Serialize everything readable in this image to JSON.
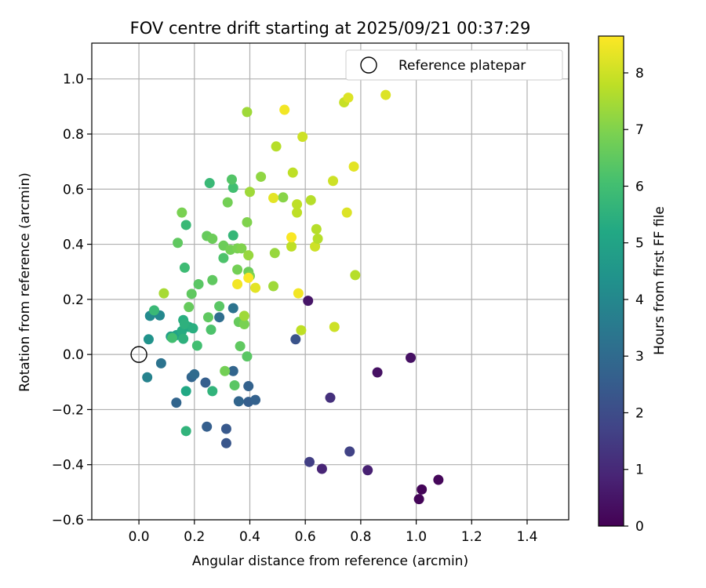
{
  "chart_data": {
    "type": "scatter",
    "title": "FOV centre drift starting at 2025/09/21 00:37:29",
    "xlabel": "Angular distance from reference (arcmin)",
    "ylabel": "Rotation from reference (arcmin)",
    "xlim": [
      -0.17,
      1.55
    ],
    "ylim": [
      -0.6,
      1.13
    ],
    "xticks": [
      0.0,
      0.2,
      0.4,
      0.6,
      0.8,
      1.0,
      1.2,
      1.4
    ],
    "yticks": [
      -0.6,
      -0.4,
      -0.2,
      0.0,
      0.2,
      0.4,
      0.6,
      0.8,
      1.0
    ],
    "grid": true,
    "legend": {
      "position": "top-right",
      "entries": [
        "Reference platepar"
      ]
    },
    "reference_point": {
      "x": 0.0,
      "y": 0.0
    },
    "colorbar": {
      "label": "Hours from first FF file",
      "range": [
        0,
        8.65
      ],
      "ticks": [
        0,
        1,
        2,
        3,
        4,
        5,
        6,
        7,
        8
      ],
      "colormap": "viridis"
    },
    "points": [
      {
        "x": 1.01,
        "y": -0.525,
        "c": 0.1
      },
      {
        "x": 1.02,
        "y": -0.49,
        "c": 0.1
      },
      {
        "x": 1.08,
        "y": -0.455,
        "c": 0.15
      },
      {
        "x": 0.98,
        "y": -0.012,
        "c": 0.4
      },
      {
        "x": 0.86,
        "y": -0.065,
        "c": 0.4
      },
      {
        "x": 0.61,
        "y": 0.195,
        "c": 0.5
      },
      {
        "x": 0.825,
        "y": -0.42,
        "c": 0.8
      },
      {
        "x": 0.66,
        "y": -0.415,
        "c": 0.9
      },
      {
        "x": 0.69,
        "y": -0.157,
        "c": 1.2
      },
      {
        "x": 0.615,
        "y": -0.39,
        "c": 1.6
      },
      {
        "x": 0.76,
        "y": -0.352,
        "c": 1.7
      },
      {
        "x": 0.565,
        "y": 0.055,
        "c": 2.2
      },
      {
        "x": 0.315,
        "y": -0.322,
        "c": 2.3
      },
      {
        "x": 0.315,
        "y": -0.27,
        "c": 2.4
      },
      {
        "x": 0.245,
        "y": -0.262,
        "c": 2.6
      },
      {
        "x": 0.395,
        "y": -0.172,
        "c": 2.6
      },
      {
        "x": 0.42,
        "y": -0.165,
        "c": 2.7
      },
      {
        "x": 0.36,
        "y": -0.17,
        "c": 2.8
      },
      {
        "x": 0.395,
        "y": -0.115,
        "c": 2.7
      },
      {
        "x": 0.34,
        "y": -0.06,
        "c": 2.8
      },
      {
        "x": 0.24,
        "y": -0.102,
        "c": 2.6
      },
      {
        "x": 0.135,
        "y": -0.175,
        "c": 2.8
      },
      {
        "x": 0.19,
        "y": -0.082,
        "c": 2.8
      },
      {
        "x": 0.2,
        "y": -0.072,
        "c": 3.0
      },
      {
        "x": 0.08,
        "y": -0.032,
        "c": 3.3
      },
      {
        "x": 0.29,
        "y": 0.135,
        "c": 3.1
      },
      {
        "x": 0.34,
        "y": 0.168,
        "c": 3.3
      },
      {
        "x": 0.03,
        "y": -0.083,
        "c": 3.8
      },
      {
        "x": 0.035,
        "y": 0.055,
        "c": 4.4
      },
      {
        "x": 0.04,
        "y": 0.14,
        "c": 4.1
      },
      {
        "x": 0.075,
        "y": 0.142,
        "c": 4.0
      },
      {
        "x": 0.115,
        "y": 0.065,
        "c": 4.8
      },
      {
        "x": 0.135,
        "y": 0.07,
        "c": 5.0
      },
      {
        "x": 0.155,
        "y": 0.085,
        "c": 5.3
      },
      {
        "x": 0.16,
        "y": 0.125,
        "c": 5.4
      },
      {
        "x": 0.18,
        "y": 0.1,
        "c": 5.2
      },
      {
        "x": 0.165,
        "y": 0.11,
        "c": 5.5
      },
      {
        "x": 0.16,
        "y": 0.057,
        "c": 5.5
      },
      {
        "x": 0.195,
        "y": 0.095,
        "c": 5.4
      },
      {
        "x": 0.17,
        "y": -0.133,
        "c": 5.2
      },
      {
        "x": 0.17,
        "y": -0.278,
        "c": 5.6
      },
      {
        "x": 0.265,
        "y": -0.133,
        "c": 5.6
      },
      {
        "x": 0.055,
        "y": 0.16,
        "c": 5.8
      },
      {
        "x": 0.12,
        "y": 0.06,
        "c": 6.0
      },
      {
        "x": 0.21,
        "y": 0.032,
        "c": 6.0
      },
      {
        "x": 0.165,
        "y": 0.315,
        "c": 5.9
      },
      {
        "x": 0.17,
        "y": 0.47,
        "c": 5.8
      },
      {
        "x": 0.255,
        "y": 0.622,
        "c": 5.8
      },
      {
        "x": 0.34,
        "y": 0.432,
        "c": 5.7
      },
      {
        "x": 0.34,
        "y": 0.605,
        "c": 6.0
      },
      {
        "x": 0.335,
        "y": 0.635,
        "c": 6.3
      },
      {
        "x": 0.14,
        "y": 0.405,
        "c": 6.5
      },
      {
        "x": 0.155,
        "y": 0.515,
        "c": 6.9
      },
      {
        "x": 0.18,
        "y": 0.172,
        "c": 6.6
      },
      {
        "x": 0.19,
        "y": 0.22,
        "c": 6.5
      },
      {
        "x": 0.215,
        "y": 0.255,
        "c": 6.4
      },
      {
        "x": 0.25,
        "y": 0.135,
        "c": 6.5
      },
      {
        "x": 0.26,
        "y": 0.09,
        "c": 6.2
      },
      {
        "x": 0.265,
        "y": 0.27,
        "c": 6.5
      },
      {
        "x": 0.245,
        "y": 0.43,
        "c": 6.6
      },
      {
        "x": 0.265,
        "y": 0.42,
        "c": 6.7
      },
      {
        "x": 0.29,
        "y": 0.175,
        "c": 6.4
      },
      {
        "x": 0.305,
        "y": 0.395,
        "c": 6.7
      },
      {
        "x": 0.305,
        "y": 0.35,
        "c": 6.2
      },
      {
        "x": 0.31,
        "y": -0.06,
        "c": 6.8
      },
      {
        "x": 0.32,
        "y": 0.552,
        "c": 6.8
      },
      {
        "x": 0.33,
        "y": 0.38,
        "c": 6.8
      },
      {
        "x": 0.345,
        "y": -0.112,
        "c": 6.4
      },
      {
        "x": 0.355,
        "y": 0.385,
        "c": 6.9
      },
      {
        "x": 0.355,
        "y": 0.308,
        "c": 6.8
      },
      {
        "x": 0.36,
        "y": 0.118,
        "c": 6.6
      },
      {
        "x": 0.365,
        "y": 0.03,
        "c": 6.5
      },
      {
        "x": 0.37,
        "y": 0.385,
        "c": 7.0
      },
      {
        "x": 0.38,
        "y": 0.11,
        "c": 6.9
      },
      {
        "x": 0.39,
        "y": 0.48,
        "c": 7.0
      },
      {
        "x": 0.39,
        "y": -0.007,
        "c": 6.4
      },
      {
        "x": 0.395,
        "y": 0.3,
        "c": 6.7
      },
      {
        "x": 0.395,
        "y": 0.36,
        "c": 7.3
      },
      {
        "x": 0.4,
        "y": 0.285,
        "c": 6.9
      },
      {
        "x": 0.4,
        "y": 0.59,
        "c": 7.4
      },
      {
        "x": 0.38,
        "y": 0.14,
        "c": 7.4
      },
      {
        "x": 0.39,
        "y": 0.88,
        "c": 7.4
      },
      {
        "x": 0.44,
        "y": 0.645,
        "c": 7.2
      },
      {
        "x": 0.485,
        "y": 0.248,
        "c": 7.4
      },
      {
        "x": 0.49,
        "y": 0.368,
        "c": 7.3
      },
      {
        "x": 0.52,
        "y": 0.57,
        "c": 7.1
      },
      {
        "x": 0.09,
        "y": 0.222,
        "c": 7.5
      },
      {
        "x": 0.495,
        "y": 0.755,
        "c": 7.7
      },
      {
        "x": 0.55,
        "y": 0.392,
        "c": 7.8
      },
      {
        "x": 0.555,
        "y": 0.66,
        "c": 7.8
      },
      {
        "x": 0.57,
        "y": 0.545,
        "c": 7.8
      },
      {
        "x": 0.57,
        "y": 0.515,
        "c": 7.8
      },
      {
        "x": 0.585,
        "y": 0.088,
        "c": 7.8
      },
      {
        "x": 0.59,
        "y": 0.79,
        "c": 8.0
      },
      {
        "x": 0.62,
        "y": 0.56,
        "c": 7.7
      },
      {
        "x": 0.635,
        "y": 0.392,
        "c": 8.0
      },
      {
        "x": 0.64,
        "y": 0.455,
        "c": 7.7
      },
      {
        "x": 0.645,
        "y": 0.42,
        "c": 7.7
      },
      {
        "x": 0.7,
        "y": 0.63,
        "c": 8.0
      },
      {
        "x": 0.705,
        "y": 0.1,
        "c": 8.0
      },
      {
        "x": 0.74,
        "y": 0.915,
        "c": 7.9
      },
      {
        "x": 0.75,
        "y": 0.515,
        "c": 8.2
      },
      {
        "x": 0.755,
        "y": 0.932,
        "c": 8.2
      },
      {
        "x": 0.775,
        "y": 0.682,
        "c": 8.3
      },
      {
        "x": 0.78,
        "y": 0.288,
        "c": 7.7
      },
      {
        "x": 0.89,
        "y": 0.942,
        "c": 8.2
      },
      {
        "x": 0.485,
        "y": 0.568,
        "c": 8.3
      },
      {
        "x": 0.525,
        "y": 0.888,
        "c": 8.5
      },
      {
        "x": 0.55,
        "y": 0.425,
        "c": 8.6
      },
      {
        "x": 0.575,
        "y": 0.222,
        "c": 8.5
      },
      {
        "x": 0.355,
        "y": 0.255,
        "c": 8.5
      },
      {
        "x": 0.42,
        "y": 0.242,
        "c": 8.3
      },
      {
        "x": 0.395,
        "y": 0.278,
        "c": 8.6
      }
    ]
  }
}
